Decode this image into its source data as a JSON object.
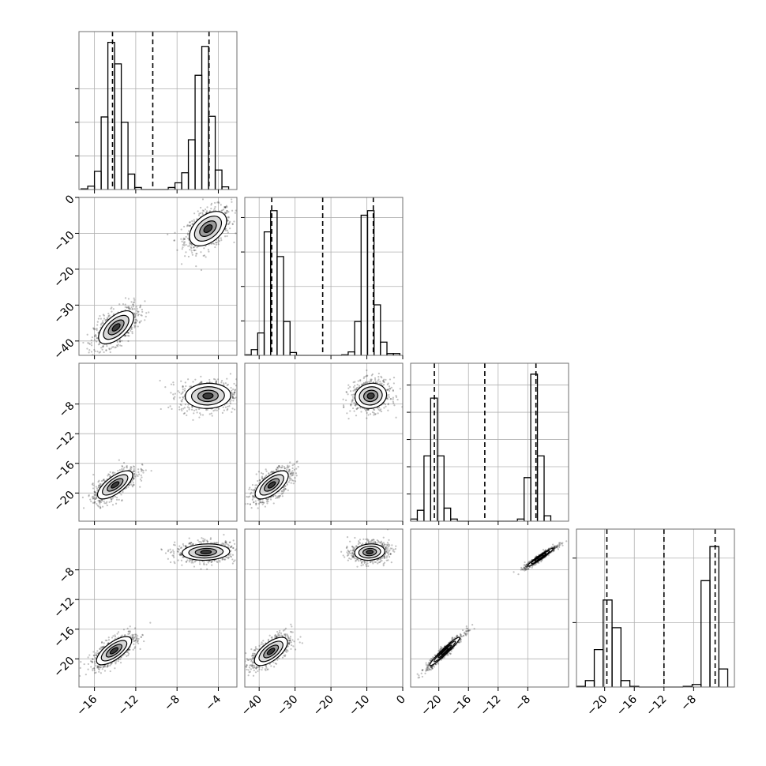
{
  "chart_data": {
    "type": "corner",
    "grid": true,
    "parameters": [
      {
        "range": [
          -17.5,
          -2.2
        ],
        "ticks": [
          -16,
          -12,
          -8,
          -4
        ],
        "tick_labels": [
          "−16",
          "−12",
          "−8",
          "−4"
        ]
      },
      {
        "range": [
          -44,
          0
        ],
        "ticks": [
          0,
          -10,
          -20,
          -30,
          -40
        ],
        "tick_labels": [
          "0",
          "−10",
          "−20",
          "−30",
          "−40"
        ]
      },
      {
        "range": [
          -23.8,
          -2.5
        ],
        "ticks": [
          -8,
          -12,
          -16,
          -20
        ],
        "tick_labels": [
          "−8",
          "−12",
          "−16",
          "−20"
        ]
      },
      {
        "range": [
          -23.8,
          -2.5
        ],
        "ticks": [
          -8,
          -12,
          -16,
          -20
        ],
        "tick_labels": [
          "−8",
          "−12",
          "−16",
          "−20"
        ]
      }
    ],
    "bottom_axis_ticks": [
      {
        "values": [
          -16,
          -12,
          -8,
          -4
        ],
        "labels": [
          "−16",
          "−12",
          "−8",
          "−4"
        ]
      },
      {
        "values": [
          -40,
          -30,
          -20,
          -10,
          0
        ],
        "labels": [
          "−40",
          "−30",
          "−20",
          "−10",
          "0"
        ]
      },
      {
        "values": [
          -20,
          -16,
          -12,
          -8
        ],
        "labels": [
          "−20",
          "−16",
          "−12",
          "−8"
        ]
      },
      {
        "values": [
          -20,
          -16,
          -12,
          -8
        ],
        "labels": [
          "−20",
          "−16",
          "−12",
          "−8"
        ]
      }
    ],
    "histograms": [
      {
        "param": 0,
        "bins": [
          {
            "x0": -17.3,
            "x1": -16.65,
            "c": 1
          },
          {
            "x0": -16.65,
            "x1": -16.0,
            "c": 5
          },
          {
            "x0": -16.0,
            "x1": -15.35,
            "c": 27
          },
          {
            "x0": -15.35,
            "x1": -14.7,
            "c": 108
          },
          {
            "x0": -14.7,
            "x1": -14.05,
            "c": 219
          },
          {
            "x0": -14.05,
            "x1": -13.4,
            "c": 187
          },
          {
            "x0": -13.4,
            "x1": -12.75,
            "c": 100
          },
          {
            "x0": -12.75,
            "x1": -12.1,
            "c": 23
          },
          {
            "x0": -12.1,
            "x1": -11.45,
            "c": 3
          },
          {
            "x0": -11.45,
            "x1": -10.8,
            "c": 0
          },
          {
            "x0": -10.8,
            "x1": -10.15,
            "c": 0
          },
          {
            "x0": -10.15,
            "x1": -9.5,
            "c": 0
          },
          {
            "x0": -9.5,
            "x1": -8.85,
            "c": 0
          },
          {
            "x0": -8.85,
            "x1": -8.2,
            "c": 3
          },
          {
            "x0": -8.2,
            "x1": -7.55,
            "c": 10
          },
          {
            "x0": -7.55,
            "x1": -6.9,
            "c": 25
          },
          {
            "x0": -6.9,
            "x1": -6.25,
            "c": 74
          },
          {
            "x0": -6.25,
            "x1": -5.6,
            "c": 170
          },
          {
            "x0": -5.6,
            "x1": -4.95,
            "c": 213
          },
          {
            "x0": -4.95,
            "x1": -4.3,
            "c": 109
          },
          {
            "x0": -4.3,
            "x1": -3.65,
            "c": 29
          },
          {
            "x0": -3.65,
            "x1": -3.0,
            "c": 4
          }
        ],
        "ymax": 235,
        "yticks": [
          50,
          100,
          150
        ],
        "quantiles": [
          -14.25,
          -10.35,
          -4.9
        ]
      },
      {
        "param": 1,
        "bins": [
          {
            "x0": -44,
            "x1": -42.2,
            "c": 1
          },
          {
            "x0": -42.2,
            "x1": -40.4,
            "c": 10
          },
          {
            "x0": -40.4,
            "x1": -38.6,
            "c": 39
          },
          {
            "x0": -38.6,
            "x1": -36.8,
            "c": 215
          },
          {
            "x0": -36.8,
            "x1": -35,
            "c": 252
          },
          {
            "x0": -35,
            "x1": -33.2,
            "c": 172
          },
          {
            "x0": -33.2,
            "x1": -31.4,
            "c": 59
          },
          {
            "x0": -31.4,
            "x1": -29.6,
            "c": 5
          },
          {
            "x0": -29.6,
            "x1": -27.8,
            "c": 0
          },
          {
            "x0": -27.8,
            "x1": -26,
            "c": 0
          },
          {
            "x0": -26,
            "x1": -24.2,
            "c": 0
          },
          {
            "x0": -24.2,
            "x1": -22.4,
            "c": 0
          },
          {
            "x0": -22.4,
            "x1": -20.6,
            "c": 0
          },
          {
            "x0": -20.6,
            "x1": -18.8,
            "c": 0
          },
          {
            "x0": -18.8,
            "x1": -17,
            "c": 0
          },
          {
            "x0": -17,
            "x1": -15.2,
            "c": 1
          },
          {
            "x0": -15.2,
            "x1": -13.4,
            "c": 6
          },
          {
            "x0": -13.4,
            "x1": -11.6,
            "c": 59
          },
          {
            "x0": -11.6,
            "x1": -9.8,
            "c": 244
          },
          {
            "x0": -9.8,
            "x1": -8,
            "c": 252
          },
          {
            "x0": -8,
            "x1": -6.2,
            "c": 88
          },
          {
            "x0": -6.2,
            "x1": -4.4,
            "c": 23
          },
          {
            "x0": -4.4,
            "x1": -2.6,
            "c": 3
          },
          {
            "x0": -2.6,
            "x1": -0.8,
            "c": 3
          }
        ],
        "ymax": 275,
        "yticks": [
          60,
          120,
          180,
          240
        ],
        "quantiles": [
          -36.5,
          -22.3,
          -8.2
        ]
      },
      {
        "param": 2,
        "bins": [
          {
            "x0": -23.8,
            "x1": -22.9,
            "c": 2
          },
          {
            "x0": -22.9,
            "x1": -22,
            "c": 10
          },
          {
            "x0": -22,
            "x1": -21.1,
            "c": 60
          },
          {
            "x0": -21.1,
            "x1": -20.2,
            "c": 113
          },
          {
            "x0": -20.2,
            "x1": -19.3,
            "c": 60
          },
          {
            "x0": -19.3,
            "x1": -18.4,
            "c": 12
          },
          {
            "x0": -18.4,
            "x1": -17.5,
            "c": 2
          },
          {
            "x0": -17.5,
            "x1": -16.6,
            "c": 0
          },
          {
            "x0": -16.6,
            "x1": -15.7,
            "c": 0
          },
          {
            "x0": -15.7,
            "x1": -14.8,
            "c": 0
          },
          {
            "x0": -14.8,
            "x1": -13.9,
            "c": 0
          },
          {
            "x0": -13.9,
            "x1": -13,
            "c": 0
          },
          {
            "x0": -13,
            "x1": -12.1,
            "c": 0
          },
          {
            "x0": -12.1,
            "x1": -11.2,
            "c": 0
          },
          {
            "x0": -11.2,
            "x1": -10.3,
            "c": 0
          },
          {
            "x0": -10.3,
            "x1": -9.4,
            "c": 0
          },
          {
            "x0": -9.4,
            "x1": -8.5,
            "c": 2
          },
          {
            "x0": -8.5,
            "x1": -7.6,
            "c": 40
          },
          {
            "x0": -7.6,
            "x1": -6.7,
            "c": 135
          },
          {
            "x0": -6.7,
            "x1": -5.8,
            "c": 60
          },
          {
            "x0": -5.8,
            "x1": -4.9,
            "c": 5
          }
        ],
        "ymax": 145,
        "yticks": [
          25,
          50,
          75,
          100,
          125
        ],
        "quantiles": [
          -20.6,
          -13.8,
          -6.9
        ]
      },
      {
        "param": 3,
        "bins": [
          {
            "x0": -23.8,
            "x1": -22.6,
            "c": 1
          },
          {
            "x0": -22.6,
            "x1": -21.4,
            "c": 10
          },
          {
            "x0": -21.4,
            "x1": -20.2,
            "c": 58
          },
          {
            "x0": -20.2,
            "x1": -19,
            "c": 135
          },
          {
            "x0": -19,
            "x1": -17.8,
            "c": 92
          },
          {
            "x0": -17.8,
            "x1": -16.6,
            "c": 10
          },
          {
            "x0": -16.6,
            "x1": -15.4,
            "c": 1
          },
          {
            "x0": -15.4,
            "x1": -14.2,
            "c": 0
          },
          {
            "x0": -14.2,
            "x1": -13,
            "c": 0
          },
          {
            "x0": -13,
            "x1": -11.8,
            "c": 0
          },
          {
            "x0": -11.8,
            "x1": -10.6,
            "c": 0
          },
          {
            "x0": -10.6,
            "x1": -9.4,
            "c": 0
          },
          {
            "x0": -9.4,
            "x1": -8.2,
            "c": 1
          },
          {
            "x0": -8.2,
            "x1": -7,
            "c": 4
          },
          {
            "x0": -7,
            "x1": -5.8,
            "c": 165
          },
          {
            "x0": -5.8,
            "x1": -4.6,
            "c": 218
          },
          {
            "x0": -4.6,
            "x1": -3.4,
            "c": 28
          }
        ],
        "ymax": 245,
        "yticks": [
          100,
          200
        ],
        "quantiles": [
          -19.7,
          -12.0,
          -5.1
        ]
      }
    ],
    "pairs": [
      {
        "x_param": 0,
        "y_param": 1,
        "blobs": [
          {
            "cx": -5.0,
            "cy": -8.7,
            "sx": 0.9,
            "sy": 2.4,
            "rho": 0.45
          },
          {
            "cx": -13.9,
            "cy": -36.2,
            "sx": 0.85,
            "sy": 2.3,
            "rho": 0.6
          }
        ]
      },
      {
        "x_param": 0,
        "y_param": 2,
        "blobs": [
          {
            "cx": -5.0,
            "cy": -6.9,
            "sx": 1.1,
            "sy": 0.85,
            "rho": 0.05
          },
          {
            "cx": -14.0,
            "cy": -18.9,
            "sx": 0.85,
            "sy": 0.95,
            "rho": 0.7
          }
        ]
      },
      {
        "x_param": 1,
        "y_param": 2,
        "blobs": [
          {
            "cx": -8.9,
            "cy": -6.9,
            "sx": 2.2,
            "sy": 0.85,
            "rho": 0.1
          },
          {
            "cx": -36.5,
            "cy": -18.9,
            "sx": 2.3,
            "sy": 0.95,
            "rho": 0.65
          }
        ]
      },
      {
        "x_param": 0,
        "y_param": 3,
        "blobs": [
          {
            "cx": -5.2,
            "cy": -5.6,
            "sx": 1.15,
            "sy": 0.55,
            "rho": 0.1
          },
          {
            "cx": -14.1,
            "cy": -18.9,
            "sx": 0.85,
            "sy": 0.95,
            "rho": 0.7
          }
        ]
      },
      {
        "x_param": 1,
        "y_param": 3,
        "blobs": [
          {
            "cx": -9.2,
            "cy": -5.6,
            "sx": 2.1,
            "sy": 0.55,
            "rho": 0.1
          },
          {
            "cx": -36.7,
            "cy": -19.0,
            "sx": 2.3,
            "sy": 0.95,
            "rho": 0.65
          }
        ]
      },
      {
        "x_param": 2,
        "y_param": 3,
        "blobs": [
          {
            "cx": -6.3,
            "cy": -6.3,
            "sx": 0.85,
            "sy": 0.6,
            "rho": 0.96
          },
          {
            "cx": -19.2,
            "cy": -19.0,
            "sx": 1.0,
            "sy": 0.95,
            "rho": 0.96
          }
        ]
      }
    ]
  }
}
